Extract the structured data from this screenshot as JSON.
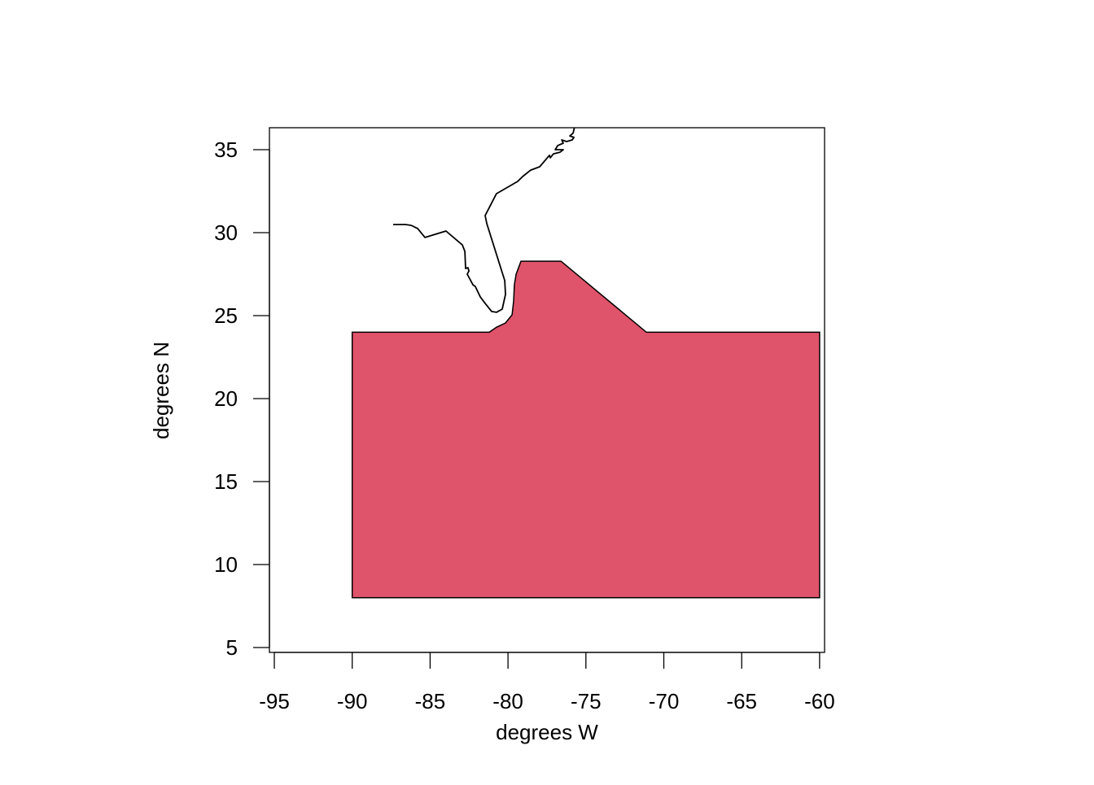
{
  "chart_data": {
    "type": "map",
    "xlabel": "degrees W",
    "ylabel": "degrees N",
    "xlim": [
      -95.3,
      -59.7
    ],
    "ylim": [
      4.7,
      36.3
    ],
    "x_ticks": [
      -95,
      -90,
      -85,
      -80,
      -75,
      -70,
      -65,
      -60
    ],
    "y_ticks": [
      5,
      10,
      15,
      20,
      25,
      30,
      35
    ],
    "x_tick_labels": [
      "-95",
      "-90",
      "-85",
      "-80",
      "-75",
      "-70",
      "-65",
      "-60"
    ],
    "y_tick_labels": [
      "5",
      "10",
      "15",
      "20",
      "25",
      "30",
      "35"
    ],
    "polygon": {
      "fill": "#DF536B",
      "stroke": "#000000",
      "points": [
        [
          -90,
          24
        ],
        [
          -81.2,
          24
        ],
        [
          -80.74,
          24.3
        ],
        [
          -80.16,
          24.56
        ],
        [
          -79.74,
          25.05
        ],
        [
          -79.64,
          25.88
        ],
        [
          -79.59,
          26.86
        ],
        [
          -79.48,
          27.5
        ],
        [
          -79.17,
          28.28
        ],
        [
          -76.6,
          28.28
        ],
        [
          -71.12,
          24
        ],
        [
          -60,
          24
        ],
        [
          -60,
          8
        ],
        [
          -90,
          8
        ]
      ]
    },
    "coastline": {
      "stroke": "#000000",
      "points": [
        [
          -87.37,
          30.49
        ],
        [
          -87.11,
          30.49
        ],
        [
          -86.59,
          30.49
        ],
        [
          -86.22,
          30.44
        ],
        [
          -85.8,
          30.25
        ],
        [
          -85.33,
          29.71
        ],
        [
          -83.98,
          30.1
        ],
        [
          -82.93,
          29.26
        ],
        [
          -82.77,
          28.87
        ],
        [
          -82.72,
          27.84
        ],
        [
          -82.57,
          27.89
        ],
        [
          -82.51,
          27.69
        ],
        [
          -82.62,
          27.5
        ],
        [
          -82.25,
          26.86
        ],
        [
          -82.1,
          26.76
        ],
        [
          -81.78,
          26.13
        ],
        [
          -81.47,
          25.74
        ],
        [
          -81.05,
          25.25
        ],
        [
          -80.74,
          25.2
        ],
        [
          -80.37,
          25.39
        ],
        [
          -80.16,
          26.28
        ],
        [
          -80.21,
          27.11
        ],
        [
          -81.36,
          30.54
        ],
        [
          -81.47,
          31.03
        ],
        [
          -80.74,
          32.35
        ],
        [
          -79.38,
          33.09
        ],
        [
          -79.06,
          33.38
        ],
        [
          -78.54,
          33.77
        ],
        [
          -77.97,
          33.97
        ],
        [
          -77.34,
          34.66
        ],
        [
          -77.29,
          34.51
        ],
        [
          -77.08,
          34.75
        ],
        [
          -76.66,
          34.85
        ],
        [
          -76.45,
          35.0
        ],
        [
          -76.97,
          35.0
        ],
        [
          -76.81,
          35.25
        ],
        [
          -76.45,
          35.39
        ],
        [
          -76.55,
          35.59
        ],
        [
          -76.24,
          35.49
        ],
        [
          -75.88,
          35.59
        ],
        [
          -75.77,
          35.74
        ],
        [
          -76.03,
          35.83
        ],
        [
          -75.82,
          36.0
        ],
        [
          -75.72,
          36.4
        ]
      ]
    }
  }
}
